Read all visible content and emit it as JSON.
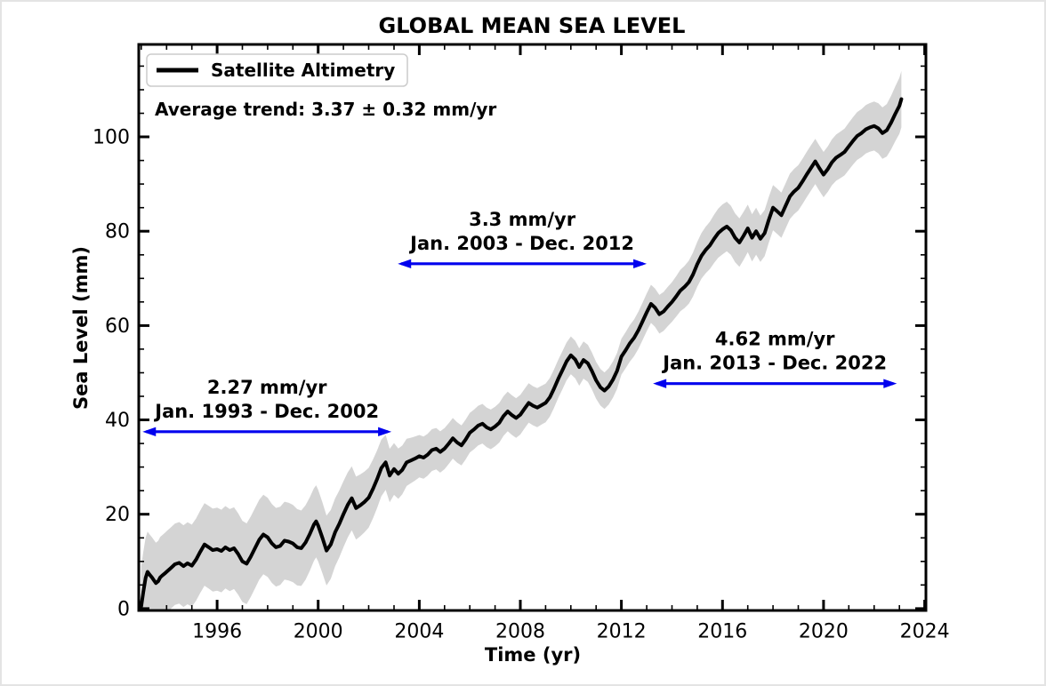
{
  "figure": {
    "title": "GLOBAL MEAN SEA LEVEL",
    "legend_label": "Satellite Altimetry",
    "trend_label": "Average trend: 3.37 ± 0.32 mm/yr"
  },
  "colors": {
    "line": "#000000",
    "band": "#d4d4d4",
    "rate_text": "#f00000",
    "period_text": "#0000ee",
    "arrow": "#0000ee",
    "axis": "#000000",
    "legend_border": "#cccccc",
    "background": "#ffffff"
  },
  "chart_data": {
    "type": "line",
    "title": "GLOBAL MEAN SEA LEVEL",
    "xlabel": "Time (yr)",
    "ylabel": "Sea Level (mm)",
    "trend_label": "Average trend: 3.37 ± 0.32 mm/yr",
    "average_trend_mm_per_yr": 3.37,
    "average_trend_uncertainty": 0.32,
    "xlim": [
      1992.9,
      2024.05
    ],
    "ylim": [
      -0.4,
      119.6
    ],
    "xticks": [
      1996,
      2000,
      2004,
      2008,
      2012,
      2016,
      2020,
      2024
    ],
    "yticks": [
      0,
      20,
      40,
      60,
      80,
      100
    ],
    "x_minor_step": 1,
    "y_minor_step": 5,
    "grid": false,
    "legend_position": "upper left",
    "series": [
      {
        "name": "Satellite Altimetry",
        "color": "#000000",
        "points": [
          [
            1993.0,
            0.5
          ],
          [
            1993.08,
            3.5
          ],
          [
            1993.17,
            6.5
          ],
          [
            1993.25,
            7.8
          ],
          [
            1993.33,
            7.2
          ],
          [
            1993.42,
            6.6
          ],
          [
            1993.5,
            6.0
          ],
          [
            1993.58,
            5.4
          ],
          [
            1993.67,
            5.8
          ],
          [
            1993.75,
            6.6
          ],
          [
            1993.83,
            7.0
          ],
          [
            1993.92,
            7.4
          ],
          [
            1994.0,
            7.8
          ],
          [
            1994.17,
            8.6
          ],
          [
            1994.33,
            9.4
          ],
          [
            1994.5,
            9.7
          ],
          [
            1994.67,
            9.0
          ],
          [
            1994.83,
            9.6
          ],
          [
            1995.0,
            9.1
          ],
          [
            1995.17,
            10.4
          ],
          [
            1995.33,
            12.0
          ],
          [
            1995.5,
            13.6
          ],
          [
            1995.67,
            13.0
          ],
          [
            1995.83,
            12.4
          ],
          [
            1996.0,
            12.6
          ],
          [
            1996.17,
            12.2
          ],
          [
            1996.33,
            13.0
          ],
          [
            1996.5,
            12.4
          ],
          [
            1996.67,
            12.8
          ],
          [
            1996.83,
            11.6
          ],
          [
            1997.0,
            10.0
          ],
          [
            1997.17,
            9.5
          ],
          [
            1997.33,
            11.0
          ],
          [
            1997.5,
            12.8
          ],
          [
            1997.67,
            14.6
          ],
          [
            1997.83,
            15.7
          ],
          [
            1998.0,
            15.1
          ],
          [
            1998.17,
            13.8
          ],
          [
            1998.33,
            13.0
          ],
          [
            1998.5,
            13.3
          ],
          [
            1998.67,
            14.4
          ],
          [
            1998.83,
            14.2
          ],
          [
            1999.0,
            13.8
          ],
          [
            1999.17,
            13.0
          ],
          [
            1999.33,
            12.8
          ],
          [
            1999.5,
            14.0
          ],
          [
            1999.67,
            15.8
          ],
          [
            1999.83,
            17.8
          ],
          [
            1999.92,
            18.5
          ],
          [
            2000.0,
            17.6
          ],
          [
            2000.17,
            15.0
          ],
          [
            2000.33,
            12.3
          ],
          [
            2000.5,
            13.6
          ],
          [
            2000.67,
            16.2
          ],
          [
            2000.83,
            17.9
          ],
          [
            2001.0,
            20.0
          ],
          [
            2001.17,
            22.0
          ],
          [
            2001.33,
            23.4
          ],
          [
            2001.5,
            21.3
          ],
          [
            2001.67,
            21.9
          ],
          [
            2001.83,
            22.6
          ],
          [
            2002.0,
            23.5
          ],
          [
            2002.17,
            25.4
          ],
          [
            2002.33,
            27.4
          ],
          [
            2002.5,
            29.8
          ],
          [
            2002.67,
            31.0
          ],
          [
            2002.83,
            28.2
          ],
          [
            2003.0,
            29.6
          ],
          [
            2003.17,
            28.6
          ],
          [
            2003.33,
            29.4
          ],
          [
            2003.5,
            31.0
          ],
          [
            2003.67,
            31.4
          ],
          [
            2003.83,
            31.8
          ],
          [
            2004.0,
            32.3
          ],
          [
            2004.17,
            32.0
          ],
          [
            2004.33,
            32.6
          ],
          [
            2004.5,
            33.6
          ],
          [
            2004.67,
            33.9
          ],
          [
            2004.83,
            33.2
          ],
          [
            2005.0,
            33.9
          ],
          [
            2005.17,
            35.0
          ],
          [
            2005.33,
            36.1
          ],
          [
            2005.5,
            35.2
          ],
          [
            2005.67,
            34.6
          ],
          [
            2005.83,
            35.8
          ],
          [
            2006.0,
            37.3
          ],
          [
            2006.17,
            38.0
          ],
          [
            2006.33,
            38.8
          ],
          [
            2006.5,
            39.2
          ],
          [
            2006.67,
            38.4
          ],
          [
            2006.83,
            38.0
          ],
          [
            2007.0,
            38.6
          ],
          [
            2007.17,
            39.4
          ],
          [
            2007.33,
            40.8
          ],
          [
            2007.5,
            41.8
          ],
          [
            2007.67,
            41.0
          ],
          [
            2007.83,
            40.4
          ],
          [
            2008.0,
            41.1
          ],
          [
            2008.17,
            42.4
          ],
          [
            2008.33,
            43.6
          ],
          [
            2008.5,
            43.0
          ],
          [
            2008.67,
            42.6
          ],
          [
            2008.83,
            43.1
          ],
          [
            2009.0,
            43.6
          ],
          [
            2009.17,
            44.8
          ],
          [
            2009.33,
            46.6
          ],
          [
            2009.5,
            48.7
          ],
          [
            2009.67,
            50.6
          ],
          [
            2009.83,
            52.4
          ],
          [
            2010.0,
            53.7
          ],
          [
            2010.17,
            52.8
          ],
          [
            2010.33,
            51.2
          ],
          [
            2010.5,
            52.7
          ],
          [
            2010.67,
            52.0
          ],
          [
            2010.83,
            50.4
          ],
          [
            2011.0,
            48.4
          ],
          [
            2011.17,
            46.9
          ],
          [
            2011.33,
            46.2
          ],
          [
            2011.5,
            47.1
          ],
          [
            2011.67,
            48.6
          ],
          [
            2011.83,
            50.4
          ],
          [
            2012.0,
            53.4
          ],
          [
            2012.17,
            54.8
          ],
          [
            2012.33,
            56.2
          ],
          [
            2012.5,
            57.4
          ],
          [
            2012.67,
            59.0
          ],
          [
            2012.83,
            60.8
          ],
          [
            2013.0,
            62.8
          ],
          [
            2013.17,
            64.6
          ],
          [
            2013.33,
            63.8
          ],
          [
            2013.5,
            62.4
          ],
          [
            2013.67,
            63.0
          ],
          [
            2013.83,
            64.0
          ],
          [
            2014.0,
            65.0
          ],
          [
            2014.17,
            66.2
          ],
          [
            2014.33,
            67.4
          ],
          [
            2014.5,
            68.2
          ],
          [
            2014.67,
            69.2
          ],
          [
            2014.83,
            70.8
          ],
          [
            2015.0,
            73.0
          ],
          [
            2015.17,
            74.8
          ],
          [
            2015.33,
            76.0
          ],
          [
            2015.5,
            77.0
          ],
          [
            2015.67,
            78.4
          ],
          [
            2015.83,
            79.6
          ],
          [
            2016.0,
            80.4
          ],
          [
            2016.17,
            81.0
          ],
          [
            2016.33,
            80.2
          ],
          [
            2016.5,
            78.6
          ],
          [
            2016.67,
            77.6
          ],
          [
            2016.83,
            79.0
          ],
          [
            2017.0,
            80.6
          ],
          [
            2017.17,
            78.6
          ],
          [
            2017.33,
            80.0
          ],
          [
            2017.5,
            78.4
          ],
          [
            2017.67,
            79.6
          ],
          [
            2017.83,
            82.4
          ],
          [
            2018.0,
            85.0
          ],
          [
            2018.17,
            84.2
          ],
          [
            2018.33,
            83.4
          ],
          [
            2018.5,
            85.4
          ],
          [
            2018.67,
            87.4
          ],
          [
            2018.83,
            88.4
          ],
          [
            2019.0,
            89.2
          ],
          [
            2019.17,
            90.6
          ],
          [
            2019.33,
            92.0
          ],
          [
            2019.5,
            93.4
          ],
          [
            2019.67,
            94.8
          ],
          [
            2019.83,
            93.4
          ],
          [
            2020.0,
            92.0
          ],
          [
            2020.17,
            93.2
          ],
          [
            2020.33,
            94.6
          ],
          [
            2020.5,
            95.6
          ],
          [
            2020.67,
            96.2
          ],
          [
            2020.83,
            96.8
          ],
          [
            2021.0,
            98.0
          ],
          [
            2021.17,
            99.2
          ],
          [
            2021.33,
            100.2
          ],
          [
            2021.5,
            100.8
          ],
          [
            2021.67,
            101.6
          ],
          [
            2021.83,
            102.0
          ],
          [
            2022.0,
            102.3
          ],
          [
            2022.17,
            101.8
          ],
          [
            2022.33,
            100.8
          ],
          [
            2022.5,
            101.4
          ],
          [
            2022.67,
            103.0
          ],
          [
            2022.83,
            104.8
          ],
          [
            2023.0,
            106.6
          ],
          [
            2023.08,
            108.0
          ]
        ]
      }
    ],
    "uncertainty_band": {
      "color": "#d4d4d4",
      "halfwidth_points": [
        [
          1993.0,
          8.5
        ],
        [
          1996.0,
          8.8
        ],
        [
          1999.0,
          8.2
        ],
        [
          2001.0,
          7.0
        ],
        [
          2002.5,
          6.0
        ],
        [
          2004.0,
          4.5
        ],
        [
          2006.0,
          4.2
        ],
        [
          2008.0,
          4.2
        ],
        [
          2010.0,
          4.0
        ],
        [
          2012.0,
          3.8
        ],
        [
          2014.0,
          4.2
        ],
        [
          2016.0,
          5.3
        ],
        [
          2018.0,
          4.8
        ],
        [
          2020.0,
          4.8
        ],
        [
          2022.0,
          5.2
        ],
        [
          2023.1,
          6.0
        ]
      ]
    },
    "annotations": [
      {
        "rate": "2.27 mm/yr",
        "range": "Jan. 1993 - Dec. 2002",
        "x_start": 1993.05,
        "x_end": 2002.9,
        "arrow_y": 37.5
      },
      {
        "rate": "3.3 mm/yr",
        "range": "Jan. 2003 - Dec. 2012",
        "x_start": 2003.15,
        "x_end": 2013.0,
        "arrow_y": 73.1
      },
      {
        "rate": "4.62 mm/yr",
        "range": "Jan. 2013 - Dec. 2022",
        "x_start": 2013.25,
        "x_end": 2022.9,
        "arrow_y": 47.7
      }
    ]
  }
}
